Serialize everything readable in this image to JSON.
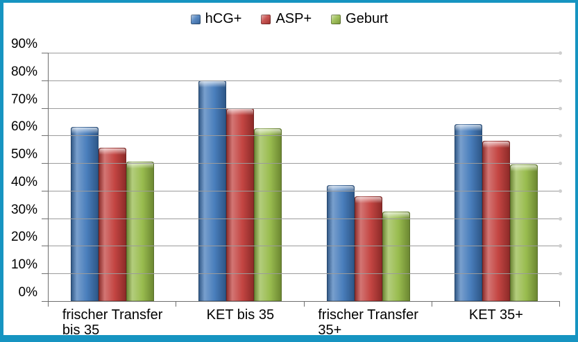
{
  "frame": {
    "border_color": "#1694C1"
  },
  "chart_data": {
    "type": "bar",
    "title": "",
    "categories": [
      "frischer Transfer\nbis 35",
      "KET bis 35",
      "frischer Transfer\n35+",
      "KET 35+"
    ],
    "series": [
      {
        "name": "hCG+",
        "color": "#3E76B8",
        "values": [
          63,
          80,
          42,
          64
        ]
      },
      {
        "name": "ASP+",
        "color": "#C03A37",
        "values": [
          55.5,
          70,
          38,
          58
        ]
      },
      {
        "name": "Geburt",
        "color": "#93B844",
        "values": [
          50.5,
          62.5,
          32.5,
          49.5
        ]
      }
    ],
    "ylim": [
      0,
      90
    ],
    "ytick_step": 10,
    "ytick_labels": [
      "0%",
      "10%",
      "20%",
      "30%",
      "40%",
      "50%",
      "60%",
      "70%",
      "80%",
      "90%"
    ],
    "xlabel": "",
    "ylabel": "",
    "grid": true,
    "legend_position": "top",
    "grid_color": "#9B9B9B",
    "axis_color": "#6E6E6E"
  }
}
